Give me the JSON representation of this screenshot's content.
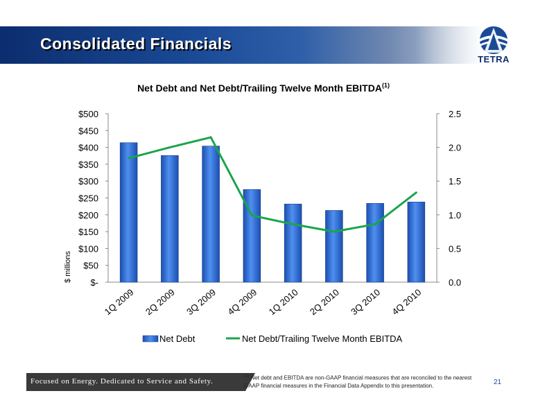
{
  "header": {
    "title": "Consolidated Financials",
    "logo_text": "TETRA"
  },
  "chart_data": {
    "type": "bar",
    "title": "Net Debt and Net Debt/Trailing Twelve Month EBITDA",
    "title_superscript": "(1)",
    "categories": [
      "1Q 2009",
      "2Q 2009",
      "3Q 2009",
      "4Q 2009",
      "1Q 2010",
      "2Q 2010",
      "3Q 2010",
      "4Q 2010"
    ],
    "ylabel": "$ millions",
    "ylim": [
      0,
      500
    ],
    "y_ticks": [
      "$-",
      "$50",
      "$100",
      "$150",
      "$200",
      "$250",
      "$300",
      "$350",
      "$400",
      "$450",
      "$500"
    ],
    "y2lim": [
      0,
      2.5
    ],
    "y2_ticks": [
      "0.0",
      "0.5",
      "1.0",
      "1.5",
      "2.0",
      "2.5"
    ],
    "series": [
      {
        "name": "Net Debt",
        "type": "bar",
        "axis": "left",
        "color": "#2f6fd8",
        "values": [
          414,
          376,
          404,
          275,
          232,
          213,
          234,
          238
        ]
      },
      {
        "name": "Net Debt/Trailing Twelve Month EBITDA",
        "type": "line",
        "axis": "right",
        "color": "#1aa54a",
        "values": [
          1.84,
          2.0,
          2.15,
          0.99,
          0.86,
          0.75,
          0.86,
          1.33
        ]
      }
    ],
    "legend_position": "bottom",
    "grid": false
  },
  "footer": {
    "tagline": "Focused on Energy. Dedicated to Service and Safety.",
    "footnote_marker": "(1)",
    "footnote": "Net debt and EBITDA are non-GAAP financial measures that are reconciled to the nearest GAAP financial measures in the Financial Data Appendix to this presentation.",
    "page_number": "21"
  }
}
